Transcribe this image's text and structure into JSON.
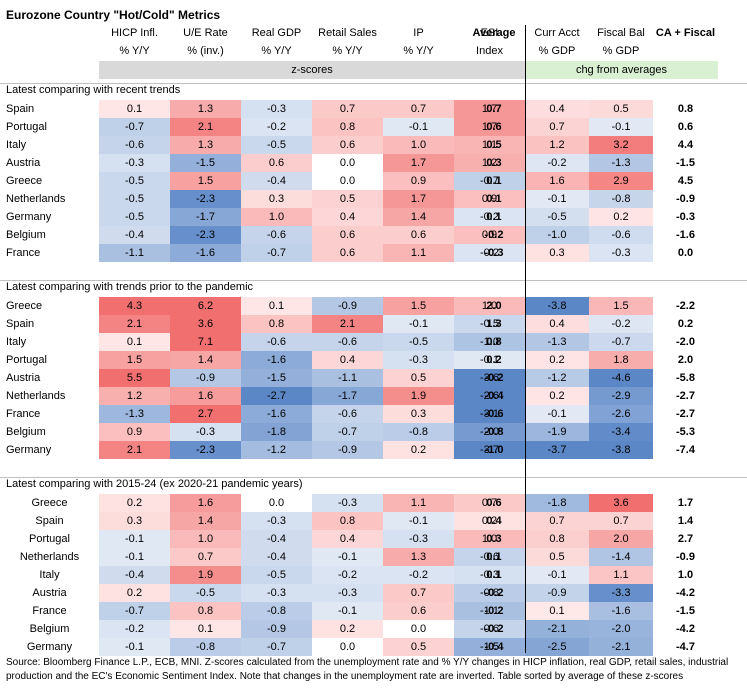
{
  "title": "Eurozone Country \"Hot/Cold\" Metrics",
  "headers": {
    "row1": [
      "HICP Infl.",
      "U/E Rate",
      "Real GDP",
      "Retail Sales",
      "IP",
      "ESI",
      "Average",
      "Curr Acct",
      "Fiscal Bal",
      "CA + Fiscal"
    ],
    "row2": [
      "% Y/Y",
      "% (inv.)",
      "% Y/Y",
      "% Y/Y",
      "% Y/Y",
      "Index",
      "",
      "% GDP",
      "% GDP",
      ""
    ]
  },
  "band_zscores": "z-scores",
  "band_chg": "chg from averages",
  "colors": {
    "hot": "#f4706f",
    "cold": "#5b87c7",
    "neutral": "#ffffff",
    "band_z": "#d9d9d9",
    "band_chg": "#d9f0d3"
  },
  "chart_data": {
    "type": "table",
    "title": "Eurozone Country \"Hot/Cold\" Metrics",
    "columns": [
      "HICP Infl. % Y/Y",
      "U/E Rate % (inv.)",
      "Real GDP % Y/Y",
      "Retail Sales % Y/Y",
      "IP % Y/Y",
      "ESI Index",
      "Average",
      "Curr Acct % GDP",
      "Fiscal Bal % GDP",
      "CA + Fiscal"
    ],
    "sections": [
      {
        "title": "Latest comparing with recent trends",
        "label_align": "left",
        "rows": [
          {
            "country": "Spain",
            "values": [
              0.1,
              1.3,
              -0.3,
              0.7,
              0.7,
              1.7
            ],
            "avg": "0.7",
            "ca": 0.4,
            "fb": 0.5,
            "caf": "0.8"
          },
          {
            "country": "Portugal",
            "values": [
              -0.7,
              2.1,
              -0.2,
              0.8,
              -0.1,
              1.7
            ],
            "avg": "0.6",
            "ca": 0.7,
            "fb": -0.1,
            "caf": "0.6"
          },
          {
            "country": "Italy",
            "values": [
              -0.6,
              1.3,
              -0.5,
              0.6,
              1.0,
              1.1
            ],
            "avg": "0.5",
            "ca": 1.2,
            "fb": 3.2,
            "caf": "4.4"
          },
          {
            "country": "Austria",
            "values": [
              -0.3,
              -1.5,
              0.6,
              0.0,
              1.7,
              1.2
            ],
            "avg": "0.3",
            "ca": -0.2,
            "fb": -1.3,
            "caf": "-1.5"
          },
          {
            "country": "Greece",
            "values": [
              -0.5,
              1.5,
              -0.4,
              0.0,
              0.9,
              -0.7
            ],
            "avg": "0.1",
            "ca": 1.6,
            "fb": 2.9,
            "caf": "4.5"
          },
          {
            "country": "Netherlands",
            "values": [
              -0.5,
              -2.3,
              0.3,
              0.5,
              1.7,
              0.9
            ],
            "avg": "0.1",
            "ca": -0.1,
            "fb": -0.8,
            "caf": "-0.9"
          },
          {
            "country": "Germany",
            "values": [
              -0.5,
              -1.7,
              1.0,
              0.4,
              1.4,
              -0.2
            ],
            "avg": "0.1",
            "ca": -0.5,
            "fb": 0.2,
            "caf": "-0.3"
          },
          {
            "country": "Belgium",
            "values": [
              -0.4,
              -2.3,
              -0.6,
              0.6,
              0.6,
              0.9
            ],
            "avg": "-0.2",
            "ca": -1.0,
            "fb": -0.6,
            "caf": "-1.6"
          },
          {
            "country": "France",
            "values": [
              -1.1,
              -1.6,
              -0.7,
              0.6,
              1.1,
              -0.2
            ],
            "avg": "-0.3",
            "ca": 0.3,
            "fb": -0.3,
            "caf": "0.0"
          }
        ]
      },
      {
        "title": "Latest comparing with trends prior to the pandemic",
        "label_align": "left",
        "rows": [
          {
            "country": "Greece",
            "values": [
              4.3,
              6.2,
              0.1,
              -0.9,
              1.5,
              1.0
            ],
            "avg": "2.0",
            "ca": -3.8,
            "fb": 1.5,
            "caf": "-2.2"
          },
          {
            "country": "Spain",
            "values": [
              2.1,
              3.6,
              0.8,
              2.1,
              -0.1,
              -0.5
            ],
            "avg": "1.3",
            "ca": 0.4,
            "fb": -0.2,
            "caf": "0.2"
          },
          {
            "country": "Italy",
            "values": [
              0.1,
              7.1,
              -0.6,
              -0.6,
              -0.5,
              -1.0
            ],
            "avg": "0.8",
            "ca": -1.3,
            "fb": -0.7,
            "caf": "-2.0"
          },
          {
            "country": "Portugal",
            "values": [
              1.5,
              1.4,
              -1.6,
              0.4,
              -0.3,
              -0.1
            ],
            "avg": "0.2",
            "ca": 0.2,
            "fb": 1.8,
            "caf": "2.0"
          },
          {
            "country": "Austria",
            "values": [
              5.5,
              -0.9,
              -1.5,
              -1.1,
              0.5,
              -3.6
            ],
            "avg": "-0.2",
            "ca": -1.2,
            "fb": -4.6,
            "caf": "-5.8"
          },
          {
            "country": "Netherlands",
            "values": [
              1.2,
              1.6,
              -2.7,
              -1.7,
              1.9,
              -2.6
            ],
            "avg": "-0.4",
            "ca": 0.2,
            "fb": -2.9,
            "caf": "-2.7"
          },
          {
            "country": "France",
            "values": [
              -1.3,
              2.7,
              -1.6,
              -0.6,
              0.3,
              -3.1
            ],
            "avg": "-0.6",
            "ca": -0.1,
            "fb": -2.6,
            "caf": "-2.7"
          },
          {
            "country": "Belgium",
            "values": [
              0.9,
              -0.3,
              -1.8,
              -0.7,
              -0.8,
              -2.0
            ],
            "avg": "-0.8",
            "ca": -1.9,
            "fb": -3.4,
            "caf": "-5.3"
          },
          {
            "country": "Germany",
            "values": [
              2.1,
              -2.3,
              -1.2,
              -0.9,
              0.2,
              -3.7
            ],
            "avg": "-1.0",
            "ca": -3.7,
            "fb": -3.8,
            "caf": "-7.4"
          }
        ]
      },
      {
        "title": "Latest comparing with 2015-24 (ex 2020-21 pandemic years)",
        "label_align": "center",
        "rows": [
          {
            "country": "Greece",
            "values": [
              0.2,
              1.6,
              0.0,
              -0.3,
              1.1,
              0.7
            ],
            "avg": "0.6",
            "ca": -1.8,
            "fb": 3.6,
            "caf": "1.7"
          },
          {
            "country": "Spain",
            "values": [
              0.3,
              1.4,
              -0.3,
              0.8,
              -0.1,
              0.2
            ],
            "avg": "0.4",
            "ca": 0.7,
            "fb": 0.7,
            "caf": "1.4"
          },
          {
            "country": "Portugal",
            "values": [
              -0.1,
              1.0,
              -0.4,
              0.4,
              -0.3,
              1.0
            ],
            "avg": "0.3",
            "ca": 0.8,
            "fb": 2.0,
            "caf": "2.7"
          },
          {
            "country": "Netherlands",
            "values": [
              -0.1,
              0.7,
              -0.4,
              -0.1,
              1.3,
              -0.6
            ],
            "avg": "0.1",
            "ca": 0.5,
            "fb": -1.4,
            "caf": "-0.9"
          },
          {
            "country": "Italy",
            "values": [
              -0.4,
              1.9,
              -0.5,
              -0.2,
              -0.2,
              -0.3
            ],
            "avg": "0.1",
            "ca": -0.1,
            "fb": 1.1,
            "caf": "1.0"
          },
          {
            "country": "Austria",
            "values": [
              0.2,
              -0.5,
              -0.3,
              -0.3,
              0.7,
              -0.8
            ],
            "avg": "-0.2",
            "ca": -0.9,
            "fb": -3.3,
            "caf": "-4.2"
          },
          {
            "country": "France",
            "values": [
              -0.7,
              0.8,
              -0.8,
              -0.1,
              0.6,
              -1.1
            ],
            "avg": "-0.2",
            "ca": 0.1,
            "fb": -1.6,
            "caf": "-1.5"
          },
          {
            "country": "Belgium",
            "values": [
              -0.2,
              0.1,
              -0.9,
              0.2,
              0.0,
              -0.6
            ],
            "avg": "-0.2",
            "ca": -2.1,
            "fb": -2.0,
            "caf": "-4.2"
          },
          {
            "country": "Germany",
            "values": [
              -0.1,
              -0.8,
              -0.7,
              0.0,
              0.5,
              -1.5
            ],
            "avg": "-0.4",
            "ca": -2.5,
            "fb": -2.1,
            "caf": "-4.7"
          }
        ]
      }
    ]
  },
  "footer": "Source: Bloomberg Finance L.P., ECB, MNI.  Z-scores calculated from the unemployment rate and % Y/Y changes in HICP inflation, real GDP, retail sales, industrial production and the EC's Economic Sentiment Index. Note that changes in the unemployment rate are inverted. Table sorted by average of these z-scores"
}
